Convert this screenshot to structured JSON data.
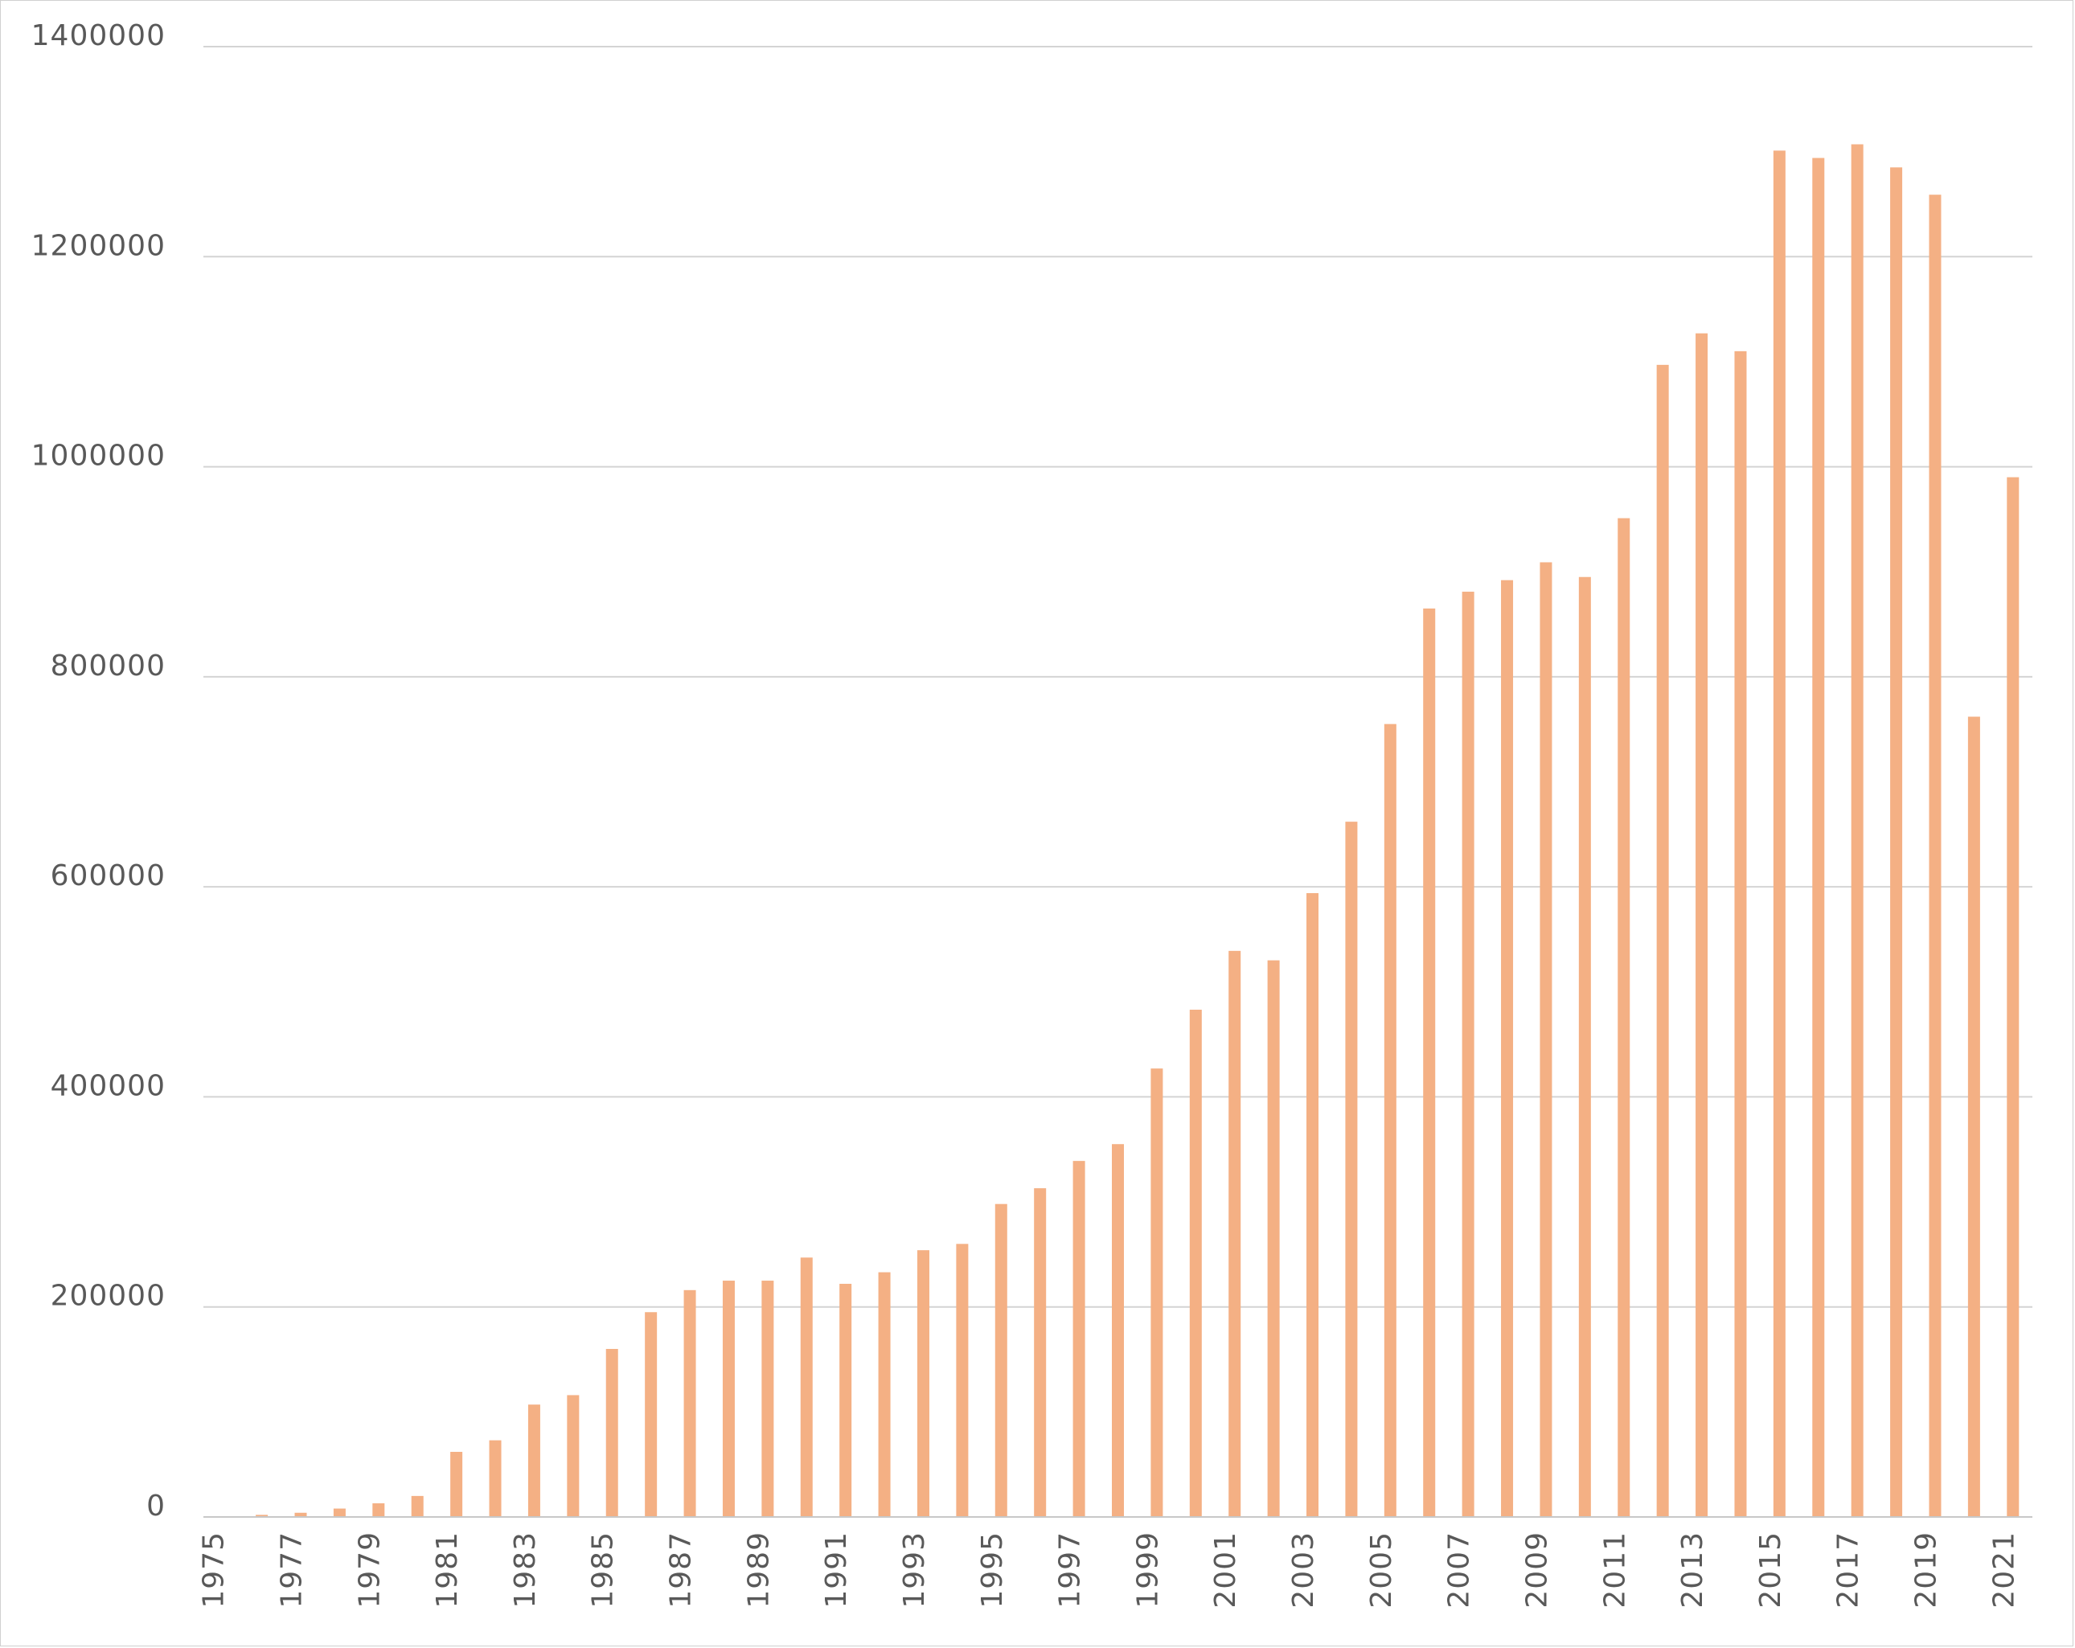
{
  "chart_data": {
    "type": "bar",
    "title": "",
    "xlabel": "",
    "ylabel": "",
    "ylim": [
      0,
      1400000
    ],
    "yticks": [
      0,
      200000,
      400000,
      600000,
      800000,
      1000000,
      1200000,
      1400000
    ],
    "ytick_labels": [
      "0",
      "200000",
      "400000",
      "600000",
      "800000",
      "1000000",
      "1200000",
      "1400000"
    ],
    "grid": true,
    "legend": "none",
    "bar_color": "#F4B084",
    "categories": [
      "1975",
      "1976",
      "1977",
      "1978",
      "1979",
      "1980",
      "1981",
      "1982",
      "1983",
      "1984",
      "1985",
      "1986",
      "1987",
      "1988",
      "1989",
      "1990",
      "1991",
      "1992",
      "1993",
      "1994",
      "1995",
      "1996",
      "1997",
      "1998",
      "1999",
      "2000",
      "2001",
      "2002",
      "2003",
      "2004",
      "2005",
      "2006",
      "2007",
      "2008",
      "2009",
      "2010",
      "2011",
      "2012",
      "2013",
      "2014",
      "2015",
      "2016",
      "2017",
      "2018",
      "2019",
      "2020",
      "2021"
    ],
    "xtick_labels": [
      "1975",
      "1977",
      "1979",
      "1981",
      "1983",
      "1985",
      "1987",
      "1989",
      "1991",
      "1993",
      "1995",
      "1997",
      "1999",
      "2001",
      "2003",
      "2005",
      "2007",
      "2009",
      "2011",
      "2013",
      "2015",
      "2017",
      "2019",
      "2021"
    ],
    "values": [
      0,
      2000,
      4000,
      8000,
      13000,
      20000,
      62000,
      73000,
      107000,
      116000,
      160000,
      195000,
      216000,
      225000,
      225000,
      247000,
      222000,
      233000,
      254000,
      260000,
      298000,
      313000,
      339000,
      355000,
      427000,
      483000,
      539000,
      530000,
      594000,
      662000,
      755000,
      865000,
      881000,
      892000,
      909000,
      895000,
      951000,
      1097000,
      1127000,
      1110000,
      1301000,
      1294000,
      1307000,
      1285000,
      1259000,
      762000,
      990000
    ]
  }
}
